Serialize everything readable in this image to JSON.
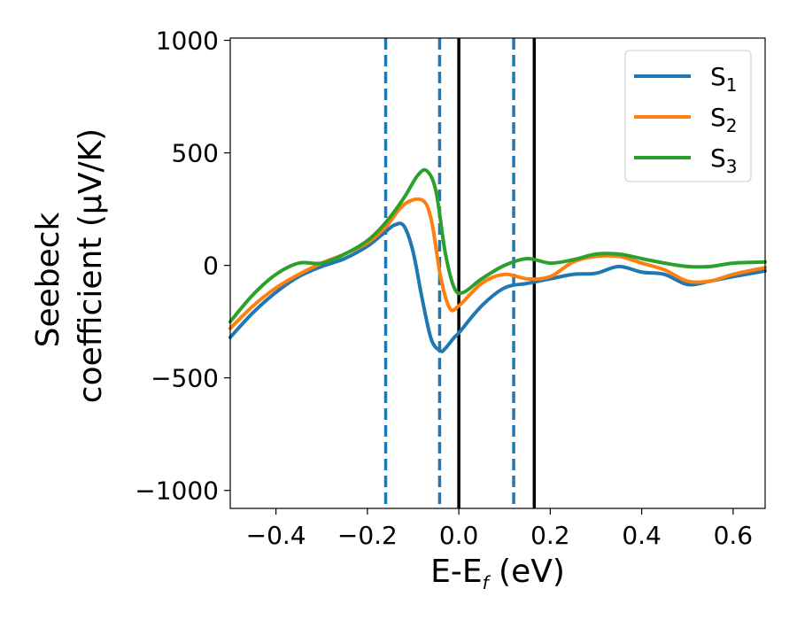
{
  "chart_data": {
    "type": "line",
    "xlabel": "E-E_f (eV)",
    "xlabel_main": "E-E",
    "xlabel_sub": "f",
    "xlabel_unit": " (eV)",
    "ylabel_line1": "Seebeck",
    "ylabel_line2": "coefficient  (μV/K)",
    "xlim": [
      -0.5,
      0.67
    ],
    "ylim": [
      -1080,
      1010
    ],
    "xticks": [
      -0.4,
      -0.2,
      0.0,
      0.2,
      0.4,
      0.6
    ],
    "xtick_labels": [
      "−0.4",
      "−0.2",
      "0.0",
      "0.2",
      "0.4",
      "0.6"
    ],
    "yticks": [
      1000,
      500,
      0,
      -500,
      -1000
    ],
    "ytick_labels": [
      "1000",
      "500",
      "0",
      "−500",
      "−1000"
    ],
    "grid": false,
    "legend_position": "top-right",
    "series": [
      {
        "name": "S_1",
        "label_main": "S",
        "label_sub": "1",
        "color": "#1f77b4",
        "x": [
          -0.5,
          -0.45,
          -0.4,
          -0.35,
          -0.3,
          -0.25,
          -0.2,
          -0.16,
          -0.14,
          -0.12,
          -0.1,
          -0.08,
          -0.06,
          -0.04,
          -0.03,
          -0.01,
          0.0,
          0.05,
          0.1,
          0.15,
          0.2,
          0.25,
          0.3,
          0.35,
          0.4,
          0.45,
          0.5,
          0.55,
          0.6,
          0.67
        ],
        "y": [
          -320,
          -210,
          -120,
          -50,
          -5,
          30,
          85,
          150,
          180,
          175,
          60,
          -150,
          -330,
          -380,
          -370,
          -320,
          -300,
          -180,
          -100,
          -80,
          -60,
          -40,
          -35,
          -5,
          -30,
          -40,
          -85,
          -70,
          -50,
          -25
        ]
      },
      {
        "name": "S_2",
        "label_main": "S",
        "label_sub": "2",
        "color": "#ff7f0e",
        "x": [
          -0.5,
          -0.45,
          -0.4,
          -0.35,
          -0.3,
          -0.25,
          -0.2,
          -0.16,
          -0.12,
          -0.08,
          -0.06,
          -0.04,
          -0.02,
          0.0,
          0.05,
          0.1,
          0.15,
          0.2,
          0.25,
          0.3,
          0.35,
          0.4,
          0.45,
          0.5,
          0.55,
          0.6,
          0.67
        ],
        "y": [
          -280,
          -180,
          -100,
          -40,
          10,
          50,
          100,
          170,
          270,
          290,
          200,
          -50,
          -190,
          -180,
          -80,
          -40,
          -60,
          -50,
          15,
          40,
          40,
          10,
          -20,
          -70,
          -70,
          -40,
          -10
        ]
      },
      {
        "name": "S_3",
        "label_main": "S",
        "label_sub": "3",
        "color": "#2ca02c",
        "x": [
          -0.5,
          -0.45,
          -0.4,
          -0.35,
          -0.3,
          -0.25,
          -0.2,
          -0.16,
          -0.12,
          -0.09,
          -0.07,
          -0.05,
          -0.03,
          -0.01,
          0.01,
          0.05,
          0.1,
          0.15,
          0.2,
          0.25,
          0.3,
          0.35,
          0.4,
          0.45,
          0.5,
          0.55,
          0.6,
          0.67
        ],
        "y": [
          -250,
          -130,
          -40,
          10,
          10,
          50,
          110,
          190,
          300,
          400,
          420,
          330,
          60,
          -100,
          -120,
          -60,
          0,
          30,
          10,
          25,
          50,
          50,
          30,
          10,
          -5,
          -5,
          10,
          15
        ]
      }
    ],
    "vertical_lines": [
      {
        "x": -0.16,
        "style": "dashed",
        "color": "#1f77b4"
      },
      {
        "x": -0.042,
        "style": "dashed",
        "color": "#1f77b4"
      },
      {
        "x": 0.12,
        "style": "dashed",
        "color": "#1f77b4"
      },
      {
        "x": 0.0,
        "style": "solid",
        "color": "#000000"
      },
      {
        "x": 0.165,
        "style": "solid",
        "color": "#000000"
      }
    ]
  }
}
